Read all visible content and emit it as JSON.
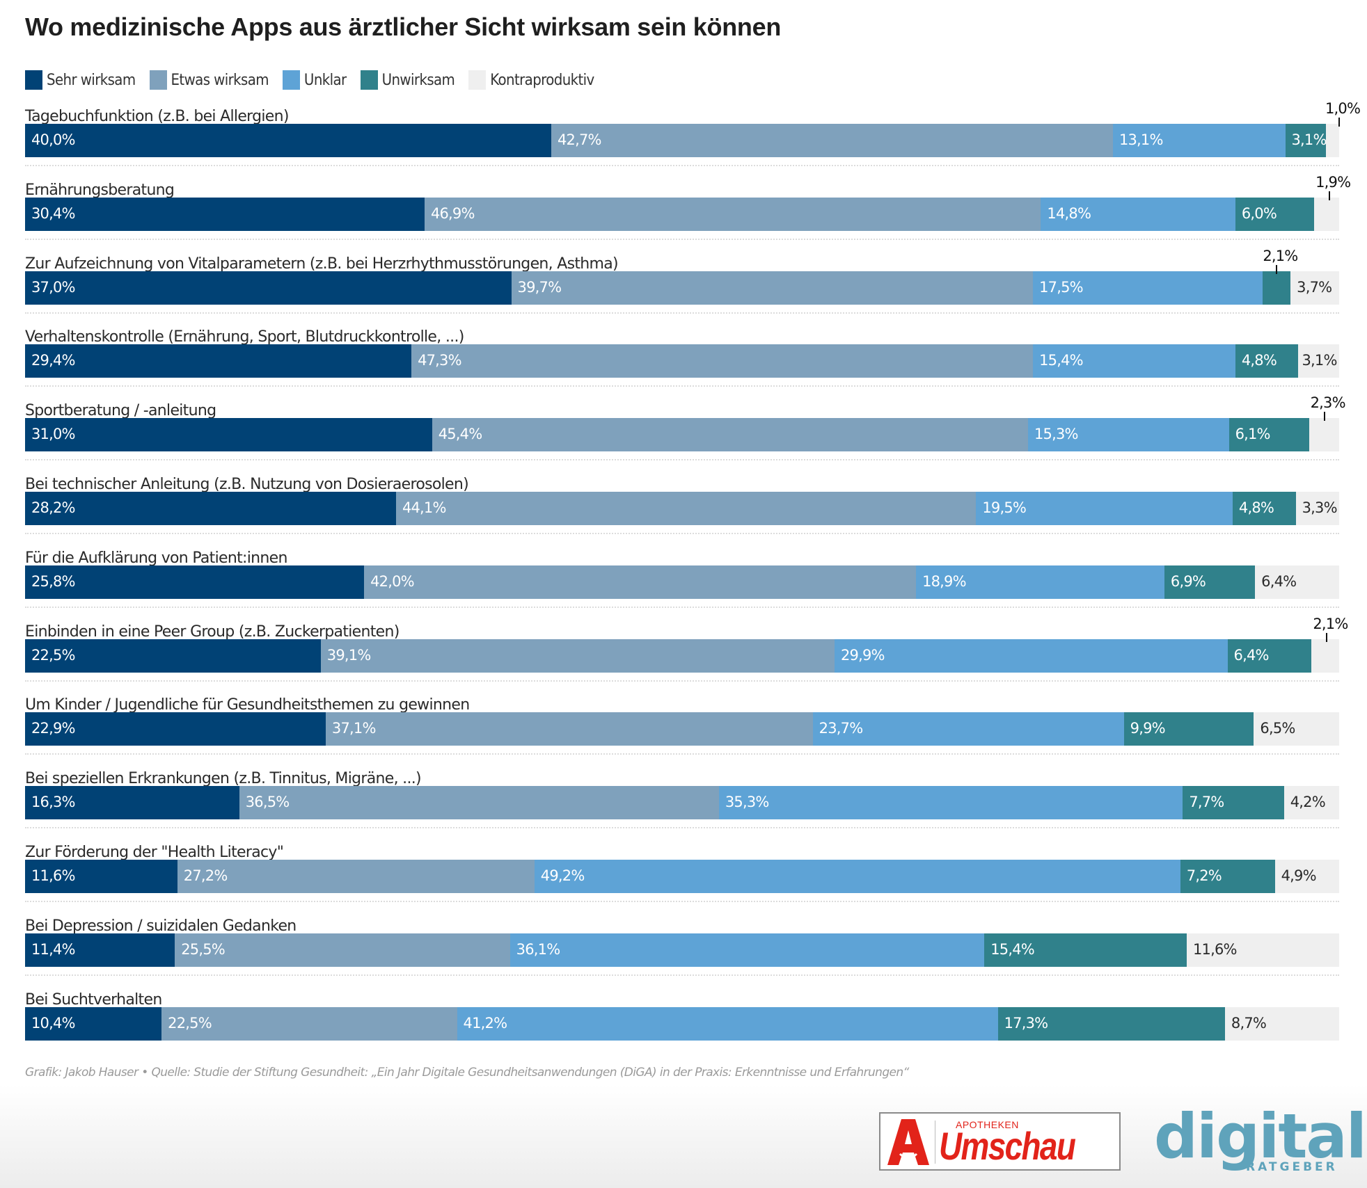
{
  "chart_data": {
    "type": "bar",
    "orientation": "horizontal",
    "stacked": true,
    "title": "Wo medizinische Apps aus ärztlicher Sicht wirksam sein können",
    "xlabel": "",
    "ylabel": "",
    "xlim": [
      0,
      100
    ],
    "unit": "%",
    "legend_position": "top-left",
    "grid": false,
    "series": [
      {
        "name": "Sehr wirksam",
        "color": "#014275",
        "label_color": "#ffffff"
      },
      {
        "name": "Etwas wirksam",
        "color": "#7fa1bc",
        "label_color": "#ffffff"
      },
      {
        "name": "Unklar",
        "color": "#5ea3d6",
        "label_color": "#ffffff"
      },
      {
        "name": "Unwirksam",
        "color": "#30818b",
        "label_color": "#ffffff"
      },
      {
        "name": "Kontraproduktiv",
        "color": "#efefef",
        "label_color": "#2a2a2a"
      }
    ],
    "categories": [
      "Tagebuchfunktion (z.B. bei Allergien)",
      "Ernährungsberatung",
      "Zur Aufzeichnung von Vitalparametern (z.B. bei Herzrhythmusstörungen, Asthma)",
      "Verhaltenskontrolle (Ernährung, Sport, Blutdruckkontrolle, ...)",
      "Sportberatung / -anleitung",
      "Bei technischer Anleitung (z.B. Nutzung von Dosieraerosolen)",
      "Für die Aufklärung von Patient:innen",
      "Einbinden in eine Peer Group (z.B. Zuckerpatienten)",
      "Um Kinder / Jugendliche für Gesundheitsthemen zu gewinnen",
      "Bei speziellen Erkrankungen (z.B. Tinnitus, Migräne, ...)",
      "Zur Förderung der \"Health Literacy\"",
      "Bei Depression / suizidalen Gedanken",
      "Bei Suchtverhalten"
    ],
    "rows": [
      {
        "values": [
          40.0,
          42.7,
          13.1,
          3.1,
          1.0
        ],
        "labels": [
          "40,0%",
          "42,7%",
          "13,1%",
          "3,1%",
          "1,0%"
        ],
        "callout": [
          4
        ]
      },
      {
        "values": [
          30.4,
          46.9,
          14.8,
          6.0,
          1.9
        ],
        "labels": [
          "30,4%",
          "46,9%",
          "14,8%",
          "6,0%",
          "1,9%"
        ],
        "callout": [
          4
        ]
      },
      {
        "values": [
          37.0,
          39.7,
          17.5,
          2.1,
          3.7
        ],
        "labels": [
          "37,0%",
          "39,7%",
          "17,5%",
          "2,1%",
          "3,7%"
        ],
        "callout": [
          3
        ]
      },
      {
        "values": [
          29.4,
          47.3,
          15.4,
          4.8,
          3.1
        ],
        "labels": [
          "29,4%",
          "47,3%",
          "15,4%",
          "4,8%",
          "3,1%"
        ],
        "callout": []
      },
      {
        "values": [
          31.0,
          45.4,
          15.3,
          6.1,
          2.3
        ],
        "labels": [
          "31,0%",
          "45,4%",
          "15,3%",
          "6,1%",
          "2,3%"
        ],
        "callout": [
          4
        ]
      },
      {
        "values": [
          28.2,
          44.1,
          19.5,
          4.8,
          3.3
        ],
        "labels": [
          "28,2%",
          "44,1%",
          "19,5%",
          "4,8%",
          "3,3%"
        ],
        "callout": []
      },
      {
        "values": [
          25.8,
          42.0,
          18.9,
          6.9,
          6.4
        ],
        "labels": [
          "25,8%",
          "42,0%",
          "18,9%",
          "6,9%",
          "6,4%"
        ],
        "callout": []
      },
      {
        "values": [
          22.5,
          39.1,
          29.9,
          6.4,
          2.1
        ],
        "labels": [
          "22,5%",
          "39,1%",
          "29,9%",
          "6,4%",
          "2,1%"
        ],
        "callout": [
          4
        ]
      },
      {
        "values": [
          22.9,
          37.1,
          23.7,
          9.9,
          6.5
        ],
        "labels": [
          "22,9%",
          "37,1%",
          "23,7%",
          "9,9%",
          "6,5%"
        ],
        "callout": []
      },
      {
        "values": [
          16.3,
          36.5,
          35.3,
          7.7,
          4.2
        ],
        "labels": [
          "16,3%",
          "36,5%",
          "35,3%",
          "7,7%",
          "4,2%"
        ],
        "callout": []
      },
      {
        "values": [
          11.6,
          27.2,
          49.2,
          7.2,
          4.9
        ],
        "labels": [
          "11,6%",
          "27,2%",
          "49,2%",
          "7,2%",
          "4,9%"
        ],
        "callout": []
      },
      {
        "values": [
          11.4,
          25.5,
          36.1,
          15.4,
          11.6
        ],
        "labels": [
          "11,4%",
          "25,5%",
          "36,1%",
          "15,4%",
          "11,6%"
        ],
        "callout": []
      },
      {
        "values": [
          10.4,
          22.5,
          41.2,
          17.3,
          8.7
        ],
        "labels": [
          "10,4%",
          "22,5%",
          "41,2%",
          "17,3%",
          "8,7%"
        ],
        "callout": []
      }
    ]
  },
  "footer": {
    "credit": "Grafik: Jakob Hauser • Quelle: Studie der Stiftung Gesundheit: „Ein Jahr Digitale Gesundheitsanwendungen (DiGA) in der Praxis: Erkenntnisse und Erfahrungen“"
  },
  "logos": {
    "umschau": {
      "top_text": "APOTHEKEN",
      "main_text": "Umschau",
      "color": "#e2231a"
    },
    "digital": {
      "main_text": "digital",
      "sub_text": "RATGEBER",
      "color": "#5fa3bb"
    }
  }
}
